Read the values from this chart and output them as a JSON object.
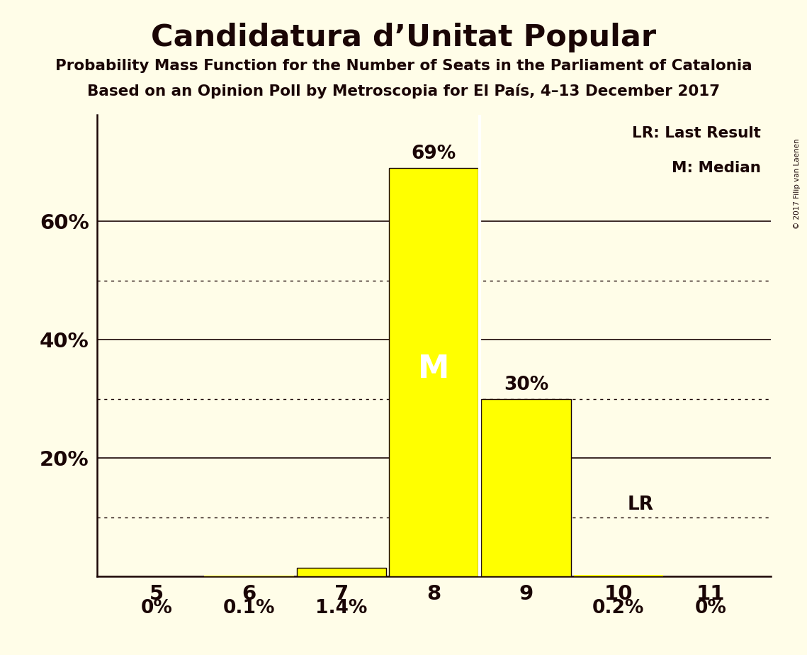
{
  "title": "Candidatura d’Unitat Popular",
  "subtitle1": "Probability Mass Function for the Number of Seats in the Parliament of Catalonia",
  "subtitle2": "Based on an Opinion Poll by Metroscopia for El País, 4–13 December 2017",
  "copyright": "© 2017 Filip van Laenen",
  "categories": [
    5,
    6,
    7,
    8,
    9,
    10,
    11
  ],
  "values": [
    0.0,
    0.001,
    0.014,
    0.69,
    0.3,
    0.002,
    0.0
  ],
  "value_labels": [
    "0%",
    "0.1%",
    "1.4%",
    "69%",
    "30%",
    "0.2%",
    "0%"
  ],
  "bar_color": "#ffff00",
  "bar_edge_color": "#1a0505",
  "background_color": "#fffde8",
  "text_color": "#1a0505",
  "median_seat": 8,
  "median_label": "M",
  "lr_seat": 10,
  "lr_value": 0.1,
  "lr_label": "LR",
  "yticks_solid": [
    0.2,
    0.4,
    0.6
  ],
  "yticks_dotted": [
    0.1,
    0.3,
    0.5
  ],
  "ylim": [
    0,
    0.78
  ],
  "legend_text1": "LR: Last Result",
  "legend_text2": "M: Median"
}
